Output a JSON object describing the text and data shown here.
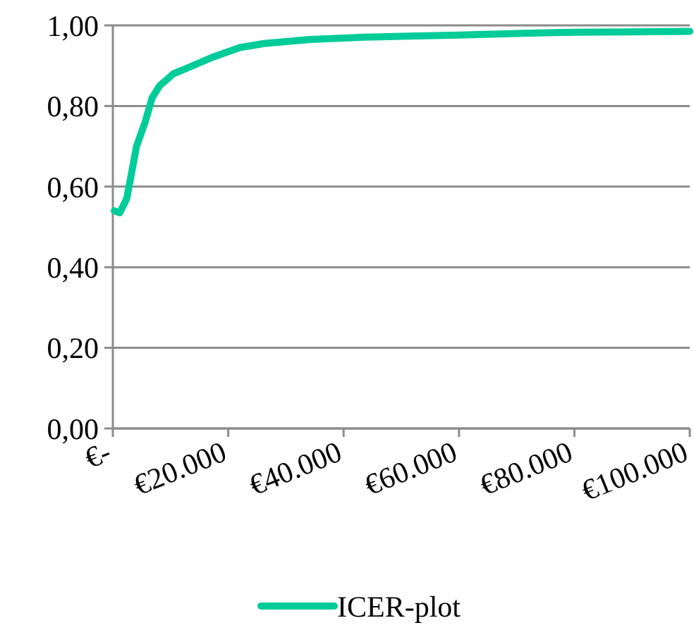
{
  "chart_data": {
    "type": "line",
    "x": [
      250,
      1200,
      2400,
      3200,
      4100,
      5600,
      6800,
      8100,
      10500,
      13900,
      17100,
      22000,
      26200,
      34200,
      42300,
      50000,
      60000,
      70000,
      80000,
      90000,
      100000
    ],
    "series": [
      {
        "name": "ICER-plot",
        "color": "#00cc99",
        "values": [
          0.54,
          0.535,
          0.57,
          0.63,
          0.7,
          0.76,
          0.82,
          0.85,
          0.88,
          0.9,
          0.92,
          0.945,
          0.955,
          0.965,
          0.97,
          0.973,
          0.976,
          0.98,
          0.983,
          0.984,
          0.985
        ]
      }
    ],
    "xlim": [
      0,
      100000
    ],
    "xticks": [
      {
        "value": 0,
        "label": "€-"
      },
      {
        "value": 20000,
        "label": "€20.000"
      },
      {
        "value": 40000,
        "label": "€40.000"
      },
      {
        "value": 60000,
        "label": "€60.000"
      },
      {
        "value": 80000,
        "label": "€80.000"
      },
      {
        "value": 100000,
        "label": "€100.000"
      }
    ],
    "ylim": [
      0,
      1
    ],
    "yticks": [
      {
        "value": 0,
        "label": "0,00"
      },
      {
        "value": 0.2,
        "label": "0,20"
      },
      {
        "value": 0.4,
        "label": "0,40"
      },
      {
        "value": 0.6,
        "label": "0,60"
      },
      {
        "value": 0.8,
        "label": "0,80"
      },
      {
        "value": 1,
        "label": "1,00"
      }
    ],
    "grid": "y",
    "legend": "bottom",
    "marker": "none",
    "line_style": "solid"
  }
}
